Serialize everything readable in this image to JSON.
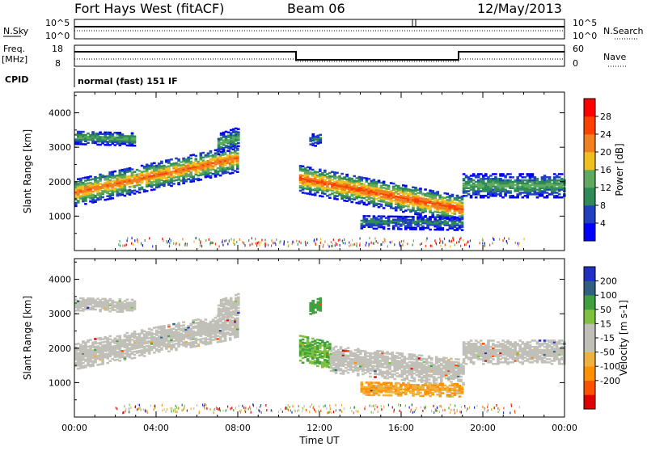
{
  "header": {
    "station": "Fort Hays West (fitACF)",
    "beam": "Beam 06",
    "date": "12/May/2013"
  },
  "top_panel": {
    "nsky_label": "N.Sky",
    "nsearch_label": "N.Search",
    "left_tick_hi": "10^5",
    "left_tick_lo": "10^0",
    "right_tick_hi": "10^5",
    "right_tick_lo": "10^0"
  },
  "freq_panel": {
    "freq_label": "Freq.",
    "freq_unit": "[MHz]",
    "nave_label": "Nave",
    "left_tick_hi": "18",
    "left_tick_lo": "8",
    "right_tick_hi": "60",
    "right_tick_lo": "0"
  },
  "cpid": {
    "label": "CPID",
    "mode": "normal (fast) 151 IF"
  },
  "colors": {
    "power": [
      "#0000ff",
      "#2040c0",
      "#2e8b57",
      "#5faa5f",
      "#f0c020",
      "#f08020",
      "#ff4000",
      "#ff0000"
    ],
    "velocity": [
      "#e00000",
      "#ff5000",
      "#ff9000",
      "#f0b040",
      "#c0c0b8",
      "#c0c0b8",
      "#80c040",
      "#40a040",
      "#306080",
      "#2030c0"
    ]
  },
  "chart_data": [
    {
      "type": "heatmap",
      "parameter": "power",
      "ylabel": "Slant Range [km]",
      "ylim": [
        0,
        4600
      ],
      "yticks": [
        "1000",
        "2000",
        "3000",
        "4000"
      ],
      "xlim": [
        "00:00",
        "24:00"
      ],
      "colorbar_label": "Power [dB]",
      "colorbar_ticks": [
        "4",
        "8",
        "12",
        "16",
        "20",
        "24",
        "28"
      ],
      "colorbar_range": [
        0,
        32
      ],
      "echo_bands": [
        {
          "t0": 0.0,
          "t1": 8.0,
          "center_start": 1700,
          "center_end": 2700,
          "width": 400,
          "peak_db": 24
        },
        {
          "t0": 0.0,
          "t1": 3.0,
          "center_start": 3300,
          "center_end": 3250,
          "width": 200,
          "peak_db": 14
        },
        {
          "t0": 7.0,
          "t1": 8.0,
          "center_start": 3100,
          "center_end": 3300,
          "width": 300,
          "peak_db": 14
        },
        {
          "t0": 11.0,
          "t1": 19.0,
          "center_start": 2100,
          "center_end": 1200,
          "width": 400,
          "peak_db": 26
        },
        {
          "t0": 14.0,
          "t1": 19.0,
          "center_start": 850,
          "center_end": 800,
          "width": 200,
          "peak_db": 10
        },
        {
          "t0": 19.0,
          "t1": 24.0,
          "center_start": 1900,
          "center_end": 1900,
          "width": 350,
          "peak_db": 14
        },
        {
          "t0": 11.5,
          "t1": 12.0,
          "center_start": 3200,
          "center_end": 3300,
          "width": 200,
          "peak_db": 10
        }
      ]
    },
    {
      "type": "heatmap",
      "parameter": "velocity",
      "ylabel": "Slant Range [km]",
      "ylim": [
        0,
        4600
      ],
      "yticks": [
        "1000",
        "2000",
        "3000",
        "4000"
      ],
      "xlabel": "Time UT",
      "xticks": [
        "00:00",
        "04:00",
        "08:00",
        "12:00",
        "16:00",
        "20:00",
        "00:00"
      ],
      "xlim": [
        "00:00",
        "24:00"
      ],
      "colorbar_label": "Velocity [m s-1]",
      "colorbar_ticks": [
        "200",
        "100",
        "50",
        "15",
        "-15",
        "-50",
        "-100",
        "-200"
      ],
      "colorbar_range": [
        -250,
        250
      ],
      "echo_bands": [
        {
          "t0": 0.0,
          "t1": 8.0,
          "center_start": 1800,
          "center_end": 2700,
          "width": 400,
          "velocity": 0
        },
        {
          "t0": 0.0,
          "t1": 3.0,
          "center_start": 3300,
          "center_end": 3250,
          "width": 200,
          "velocity": 0
        },
        {
          "t0": 7.0,
          "t1": 8.0,
          "center_start": 3100,
          "center_end": 3300,
          "width": 300,
          "velocity": 0
        },
        {
          "t0": 11.0,
          "t1": 12.5,
          "center_start": 2000,
          "center_end": 1800,
          "width": 400,
          "velocity": 30
        },
        {
          "t0": 12.5,
          "t1": 19.0,
          "center_start": 1700,
          "center_end": 1300,
          "width": 400,
          "velocity": 0
        },
        {
          "t0": 14.0,
          "t1": 19.0,
          "center_start": 850,
          "center_end": 800,
          "width": 200,
          "velocity": -30
        },
        {
          "t0": 19.0,
          "t1": 24.0,
          "center_start": 1900,
          "center_end": 1900,
          "width": 350,
          "velocity": 0
        },
        {
          "t0": 11.5,
          "t1": 12.0,
          "center_start": 3200,
          "center_end": 3300,
          "width": 200,
          "velocity": 60
        }
      ]
    }
  ]
}
